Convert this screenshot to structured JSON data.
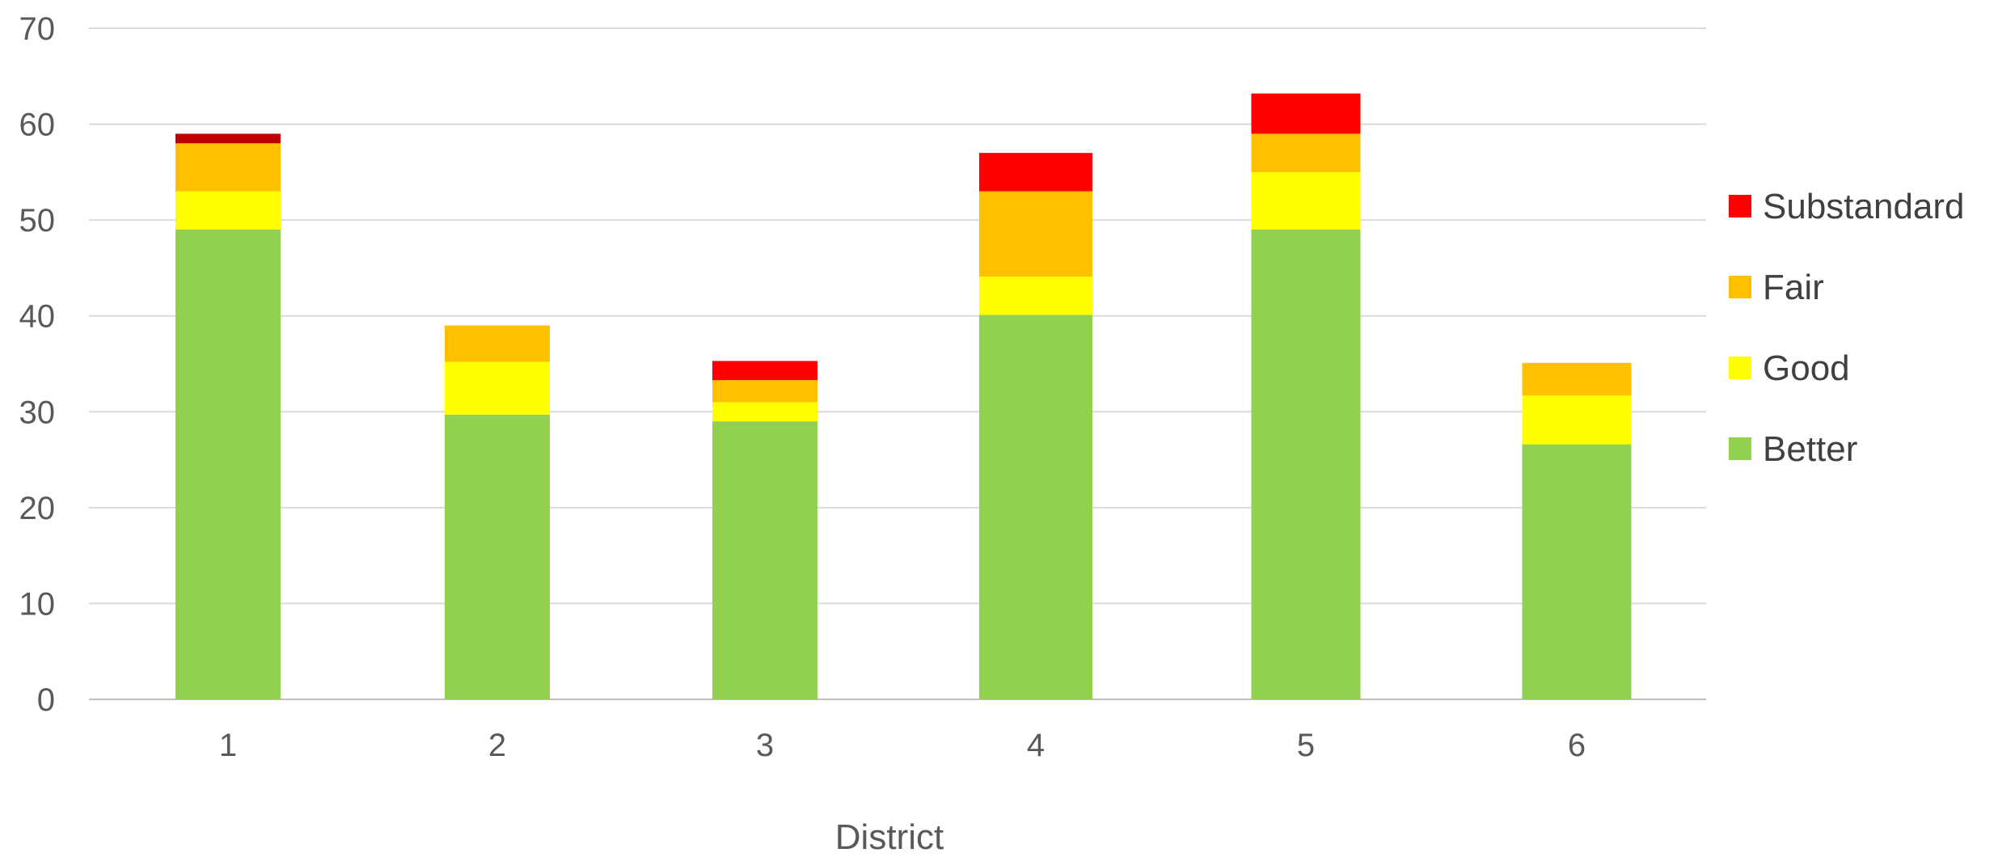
{
  "chart_data": {
    "type": "bar",
    "stacked": true,
    "title": "",
    "xlabel": "District",
    "ylabel": "",
    "categories": [
      "1",
      "2",
      "3",
      "4",
      "5",
      "6"
    ],
    "ylim": [
      0,
      70
    ],
    "yticks": [
      0,
      10,
      20,
      30,
      40,
      50,
      60,
      70
    ],
    "grid": true,
    "legend_position": "right",
    "series": [
      {
        "name": "Better",
        "color": "#92d050",
        "values": [
          49,
          29.7,
          29,
          40.1,
          49,
          26.6
        ]
      },
      {
        "name": "Good",
        "color": "#ffff00",
        "values": [
          4,
          5.5,
          2,
          4,
          6,
          5.1
        ]
      },
      {
        "name": "Fair",
        "color": "#ffc000",
        "values": [
          5,
          3.8,
          2.3,
          8.9,
          4,
          3.4
        ]
      },
      {
        "name": "Substandard",
        "color": "#ff0000",
        "values": [
          1,
          0,
          2,
          4,
          4.2,
          0
        ]
      }
    ],
    "segment_color_overrides": [
      {
        "series": "Substandard",
        "category": "1",
        "color": "#c00000"
      }
    ]
  }
}
